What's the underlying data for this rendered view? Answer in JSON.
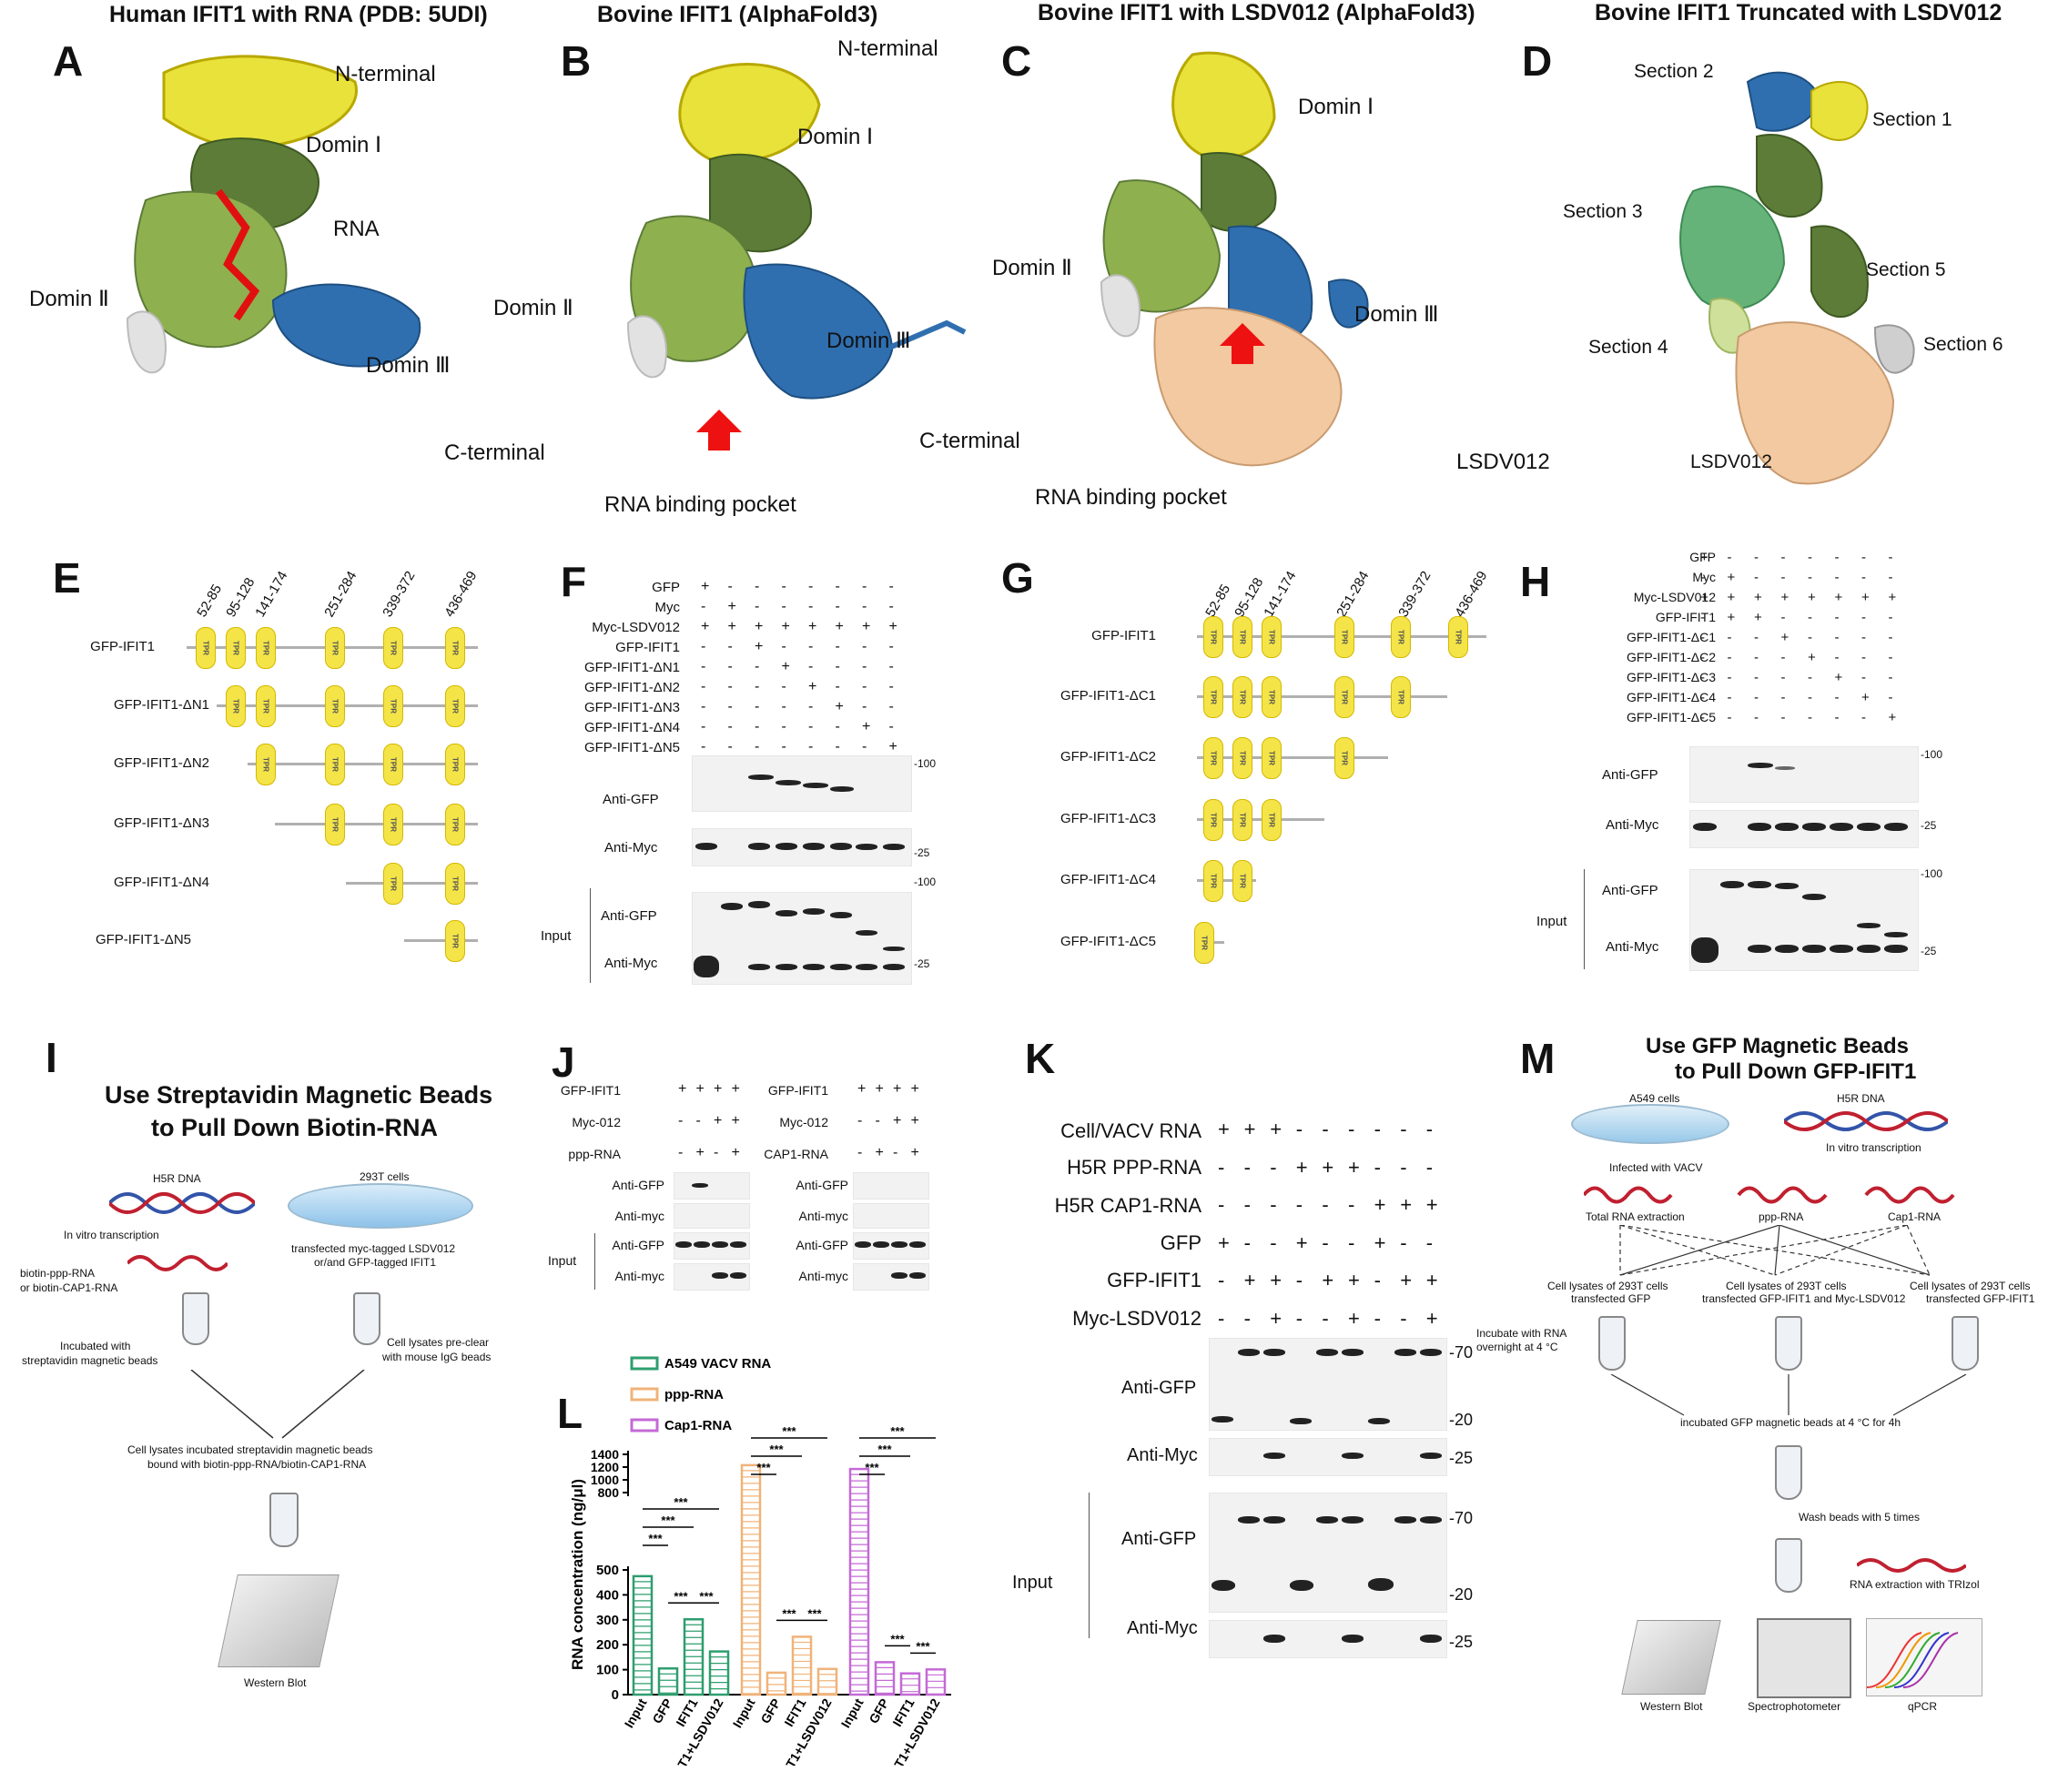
{
  "panels": {
    "A": {
      "letter": "A",
      "title": "Human IFIT1 with RNA (PDB: 5UDI)",
      "labels": {
        "nterm": "N-terminal",
        "d1": "Domin Ⅰ",
        "rna": "RNA",
        "d2": "Domin Ⅱ",
        "d3": "Domin Ⅲ",
        "cterm": "C-terminal"
      }
    },
    "B": {
      "letter": "B",
      "title": "Bovine IFIT1 (AlphaFold3)",
      "labels": {
        "nterm": "N-terminal",
        "d1": "Domin Ⅰ",
        "d2": "Domin Ⅱ",
        "d3": "Domin Ⅲ",
        "cterm": "C-terminal",
        "pocket": "RNA binding pocket"
      }
    },
    "C": {
      "letter": "C",
      "title": "Bovine IFIT1 with LSDV012 (AlphaFold3)",
      "labels": {
        "d1": "Domin Ⅰ",
        "d2": "Domin Ⅱ",
        "d3": "Domin Ⅲ",
        "lsdv": "LSDV012",
        "pocket": "RNA binding pocket"
      }
    },
    "D": {
      "letter": "D",
      "title": "Bovine IFIT1 Truncated with LSDV012",
      "labels": {
        "s1": "Section 1",
        "s2": "Section 2",
        "s3": "Section 3",
        "s4": "Section 4",
        "s5": "Section 5",
        "s6": "Section 6",
        "lsdv": "LSDV012"
      }
    },
    "E": {
      "letter": "E",
      "domains": [
        "52-85",
        "95-128",
        "141-174",
        "251-284",
        "339-372",
        "436-469"
      ],
      "tpr": "TPR",
      "constructs": [
        "GFP-IFIT1",
        "GFP-IFIT1-ΔN1",
        "GFP-IFIT1-ΔN2",
        "GFP-IFIT1-ΔN3",
        "GFP-IFIT1-ΔN4",
        "GFP-IFIT1-ΔN5"
      ]
    },
    "F": {
      "letter": "F",
      "rows": [
        "GFP",
        "Myc",
        "Myc-LSDV012",
        "GFP-IFIT1",
        "GFP-IFIT1-ΔN1",
        "GFP-IFIT1-ΔN2",
        "GFP-IFIT1-ΔN3",
        "GFP-IFIT1-ΔN4",
        "GFP-IFIT1-ΔN5"
      ],
      "signs": [
        [
          "+",
          "-",
          "-",
          "-",
          "-",
          "-",
          "-",
          "-"
        ],
        [
          "-",
          "+",
          "-",
          "-",
          "-",
          "-",
          "-",
          "-"
        ],
        [
          "+",
          "+",
          "+",
          "+",
          "+",
          "+",
          "+",
          "+"
        ],
        [
          "-",
          "-",
          "+",
          "-",
          "-",
          "-",
          "-",
          "-"
        ],
        [
          "-",
          "-",
          "-",
          "+",
          "-",
          "-",
          "-",
          "-"
        ],
        [
          "-",
          "-",
          "-",
          "-",
          "+",
          "-",
          "-",
          "-"
        ],
        [
          "-",
          "-",
          "-",
          "-",
          "-",
          "+",
          "-",
          "-"
        ],
        [
          "-",
          "-",
          "-",
          "-",
          "-",
          "-",
          "+",
          "-"
        ],
        [
          "-",
          "-",
          "-",
          "-",
          "-",
          "-",
          "-",
          "+"
        ]
      ],
      "blots": [
        "Anti-GFP",
        "Anti-Myc",
        "Anti-GFP",
        "Anti-Myc"
      ],
      "input": "Input",
      "mw": [
        "-100",
        "-25",
        "-100",
        "-25"
      ]
    },
    "G": {
      "letter": "G",
      "domains": [
        "52-85",
        "95-128",
        "141-174",
        "251-284",
        "339-372",
        "436-469"
      ],
      "tpr": "TPR",
      "constructs": [
        "GFP-IFIT1",
        "GFP-IFIT1-ΔC1",
        "GFP-IFIT1-ΔC2",
        "GFP-IFIT1-ΔC3",
        "GFP-IFIT1-ΔC4",
        "GFP-IFIT1-ΔC5"
      ]
    },
    "H": {
      "letter": "H",
      "rows": [
        "GFP",
        "Myc",
        "Myc-LSDV012",
        "GFP-IFIT1",
        "GFP-IFIT1-ΔC1",
        "GFP-IFIT1-ΔC2",
        "GFP-IFIT1-ΔC3",
        "GFP-IFIT1-ΔC4",
        "GFP-IFIT1-ΔC5"
      ],
      "signs": [
        [
          "+",
          "-",
          "-",
          "-",
          "-",
          "-",
          "-",
          "-"
        ],
        [
          "-",
          "+",
          "-",
          "-",
          "-",
          "-",
          "-",
          "-"
        ],
        [
          "+",
          "+",
          "+",
          "+",
          "+",
          "+",
          "+",
          "+"
        ],
        [
          "-",
          "+",
          "+",
          "-",
          "-",
          "-",
          "-",
          "-"
        ],
        [
          "-",
          "-",
          "-",
          "+",
          "-",
          "-",
          "-",
          "-"
        ],
        [
          "-",
          "-",
          "-",
          "-",
          "+",
          "-",
          "-",
          "-"
        ],
        [
          "-",
          "-",
          "-",
          "-",
          "-",
          "+",
          "-",
          "-"
        ],
        [
          "-",
          "-",
          "-",
          "-",
          "-",
          "-",
          "+",
          "-"
        ],
        [
          "-",
          "-",
          "-",
          "-",
          "-",
          "-",
          "-",
          "+"
        ]
      ],
      "blots": [
        "Anti-GFP",
        "Anti-Myc",
        "Anti-GFP",
        "Anti-Myc"
      ],
      "input": "Input",
      "mw": [
        "-100",
        "-25",
        "-100",
        "-25"
      ]
    },
    "I": {
      "letter": "I",
      "title1": "Use Streptavidin Magnetic Beads",
      "title2": "to Pull Down Biotin-RNA",
      "h5r": "H5R DNA",
      "cells": "293T cells",
      "ivt": "In vitro transcription",
      "biotin1": "biotin-ppp-RNA",
      "biotin2": "or biotin-CAP1-RNA",
      "transf1": "transfected myc-tagged LSDV012",
      "transf2": "or/and GFP-tagged IFIT1",
      "inc1": "Incubated with",
      "inc2": "streptavidin magnetic beads",
      "pre1": "Cell lysates pre-clear",
      "pre2": "with mouse IgG beads",
      "lys1": "Cell lysates incubated streptavidin magnetic beads",
      "lys2": "bound with biotin-ppp-RNA/biotin-CAP1-RNA",
      "wb": "Western Blot"
    },
    "J": {
      "letter": "J",
      "left": {
        "rows": [
          "GFP-IFIT1",
          "Myc-012",
          "ppp-RNA"
        ],
        "signs": [
          [
            "+",
            "+",
            "+",
            "+"
          ],
          [
            "-",
            "-",
            "+",
            "+"
          ],
          [
            "-",
            "+",
            "-",
            "+"
          ]
        ]
      },
      "right": {
        "rows": [
          "GFP-IFIT1",
          "Myc-012",
          "CAP1-RNA"
        ],
        "signs": [
          [
            "+",
            "+",
            "+",
            "+"
          ],
          [
            "-",
            "-",
            "+",
            "+"
          ],
          [
            "-",
            "+",
            "-",
            "+"
          ]
        ]
      },
      "blots": [
        "Anti-GFP",
        "Anti-myc",
        "Anti-GFP",
        "Anti-myc"
      ],
      "input": "Input"
    },
    "K": {
      "letter": "K",
      "rows": [
        "Cell/VACV RNA",
        "H5R PPP-RNA",
        "H5R CAP1-RNA",
        "GFP",
        "GFP-IFIT1",
        "Myc-LSDV012"
      ],
      "signs": [
        [
          "+",
          "+",
          "+",
          "-",
          "-",
          "-",
          "-",
          "-",
          "-"
        ],
        [
          "-",
          "-",
          "-",
          "+",
          "+",
          "+",
          "-",
          "-",
          "-"
        ],
        [
          "-",
          "-",
          "-",
          "-",
          "-",
          "-",
          "+",
          "+",
          "+"
        ],
        [
          "+",
          "-",
          "-",
          "+",
          "-",
          "-",
          "+",
          "-",
          "-"
        ],
        [
          "-",
          "+",
          "+",
          "-",
          "+",
          "+",
          "-",
          "+",
          "+"
        ],
        [
          "-",
          "-",
          "+",
          "-",
          "-",
          "+",
          "-",
          "-",
          "+"
        ]
      ],
      "blots": [
        "Anti-GFP",
        "Anti-Myc",
        "Anti-GFP",
        "Anti-Myc"
      ],
      "input": "Input",
      "mw": [
        "-70",
        "-20",
        "-25",
        "-70",
        "-20",
        "-25"
      ]
    },
    "M": {
      "letter": "M",
      "title1": "Use GFP Magnetic Beads",
      "title2": "to Pull Down GFP-IFIT1",
      "a549": "A549 cells",
      "h5r": "H5R DNA",
      "infected": "Infected with VACV",
      "ivt": "In vitro transcription",
      "total": "Total RNA extraction",
      "ppp": "ppp-RNA",
      "cap1": "Cap1-RNA",
      "lys_a1": "Cell lysates of 293T cells",
      "lys_a2": "transfected GFP",
      "lys_b1": "Cell lysates of 293T cells",
      "lys_b2": "transfected GFP-IFIT1 and Myc-LSDV012",
      "lys_c1": "Cell lysates  of 293T cells",
      "lys_c2": "transfected GFP-IFIT1",
      "inc1": "Incubate with RNA",
      "inc2": "overnight at 4 °C",
      "beads": "incubated GFP magnetic beads at 4 °C for 4h",
      "wash": "Wash beads with 5 times",
      "extract": "RNA extraction with TRIzol",
      "out1": "Western Blot",
      "out2": "Spectrophotometer",
      "out3": "qPCR"
    }
  },
  "chart_data": {
    "type": "bar",
    "panel": "L",
    "ylabel": "RNA concentration (ng/μl)",
    "categories": [
      "Input",
      "GFP",
      "IFIT1",
      "IFIT1+LSDV012"
    ],
    "yticks_low": [
      0,
      100,
      200,
      300,
      400,
      500
    ],
    "yticks_high": [
      800,
      1000,
      1200,
      1400
    ],
    "series": [
      {
        "name": "A549 VACV RNA",
        "color": "#2e9e6e",
        "values": [
          475,
          105,
          302,
          173
        ]
      },
      {
        "name": "ppp-RNA",
        "color": "#f0b37a",
        "values": [
          1230,
          88,
          232,
          103
        ]
      },
      {
        "name": "Cap1-RNA",
        "color": "#c46ad6",
        "values": [
          1170,
          130,
          85,
          101
        ]
      }
    ],
    "significance": "***"
  }
}
